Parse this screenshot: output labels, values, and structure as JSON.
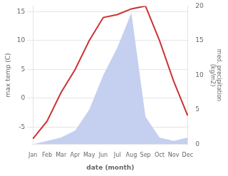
{
  "chart_data": {
    "type": "line",
    "categories": [
      "Jan",
      "Feb",
      "Mar",
      "Apr",
      "May",
      "Jun",
      "Jul",
      "Aug",
      "Sep",
      "Oct",
      "Nov",
      "Dec"
    ],
    "xlabel": "date (month)",
    "ylabel": "max temp (C)",
    "y2label": "med. precipitation\n(kg/m2)",
    "series": [
      {
        "type": "area",
        "color": "#c5cff0",
        "axis": "y2",
        "values": [
          0,
          0.5,
          1,
          2,
          5,
          10,
          14,
          19,
          4,
          1,
          0.5,
          1
        ]
      },
      {
        "type": "line",
        "color": "#cc3333",
        "values": [
          -7,
          -4,
          1,
          5,
          10,
          14,
          14.5,
          15.5,
          16,
          10,
          3,
          -3
        ]
      }
    ],
    "ylim": [
      -8,
      16
    ],
    "yticks": [
      -5,
      0,
      5,
      10,
      15
    ],
    "y2lim": [
      0,
      20
    ],
    "y2ticks": [
      0,
      5,
      10,
      15,
      20
    ],
    "grid": true
  }
}
